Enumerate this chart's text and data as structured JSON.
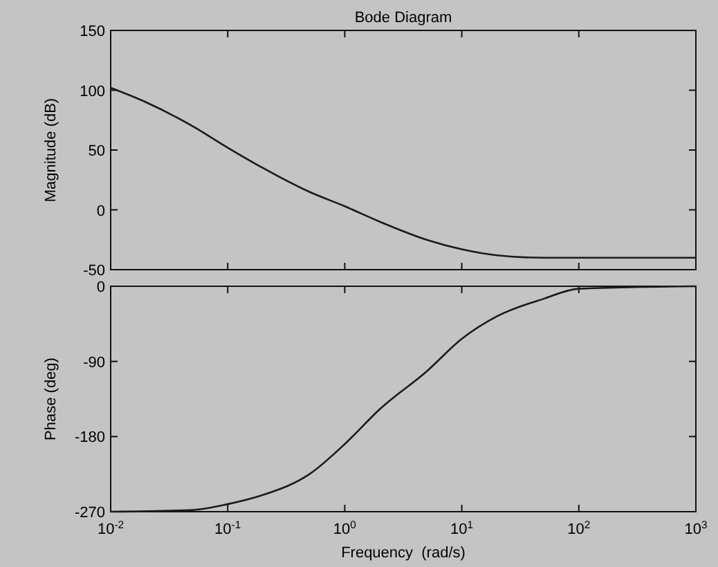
{
  "chart_data": [
    {
      "type": "line",
      "title": "Bode Diagram",
      "ylabel": "Magnitude (dB)",
      "log": "x",
      "xlim": [
        0.01,
        1000
      ],
      "ylim": [
        -50,
        150
      ],
      "yticks": [
        -50,
        0,
        50,
        100,
        150
      ],
      "xticks": [
        {
          "value": 0.01,
          "label": null
        },
        {
          "value": 0.1,
          "label": null
        },
        {
          "value": 1,
          "label": null
        },
        {
          "value": 10,
          "label": null
        },
        {
          "value": 100,
          "label": null
        },
        {
          "value": 1000,
          "label": null
        }
      ],
      "tick_labels": "y",
      "grid": false,
      "series": [
        {
          "color": "#1a1a1a",
          "x": [
            0.01,
            0.02,
            0.05,
            0.1,
            0.2,
            0.5,
            1,
            2,
            5,
            10,
            20,
            50,
            100,
            1000
          ],
          "values": [
            102,
            90,
            70,
            52,
            35,
            15,
            3,
            -10,
            -25,
            -33,
            -38,
            -40,
            -40,
            -40
          ]
        }
      ]
    },
    {
      "type": "line",
      "xlabel": "Frequency  (rad/s)",
      "ylabel": "Phase (deg)",
      "log": "x",
      "xlim": [
        0.01,
        1000
      ],
      "ylim": [
        -270,
        0
      ],
      "yticks": [
        -270,
        -180,
        -90,
        0
      ],
      "xticks": [
        {
          "value": 0.01,
          "label": "10$^{-2}$"
        },
        {
          "value": 0.1,
          "label": "10$^{-1}$"
        },
        {
          "value": 1,
          "label": "10$^{0}$"
        },
        {
          "value": 10,
          "label": "10$^{1}$"
        },
        {
          "value": 100,
          "label": "10$^{2}$"
        },
        {
          "value": 1000,
          "label": "10$^{3}$"
        }
      ],
      "grid": false,
      "series": [
        {
          "color": "#1a1a1a",
          "x": [
            0.01,
            0.05,
            0.1,
            0.2,
            0.5,
            1,
            2,
            5,
            10,
            20,
            50,
            100,
            1000
          ],
          "values": [
            -270,
            -268,
            -261,
            -250,
            -225,
            -189,
            -147,
            -102,
            -63,
            -36,
            -15,
            -3,
            0
          ]
        }
      ]
    }
  ]
}
